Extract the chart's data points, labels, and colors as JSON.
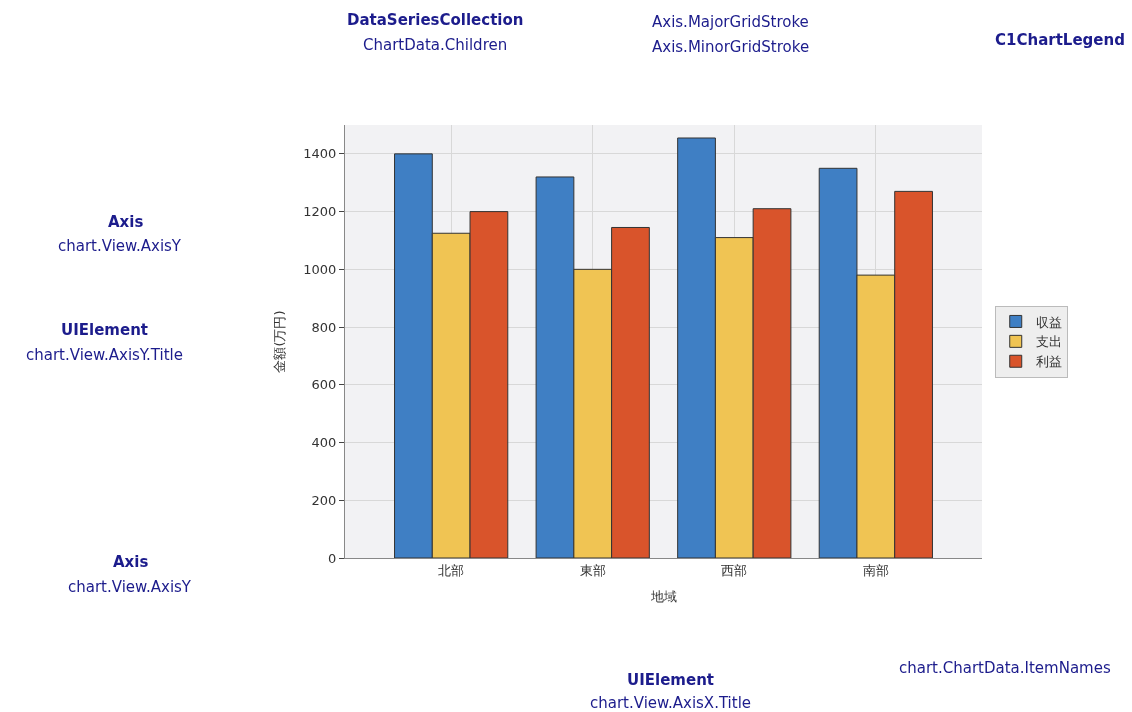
{
  "chart_data": {
    "type": "bar",
    "categories": [
      "北部",
      "東部",
      "西部",
      "南部"
    ],
    "series": [
      {
        "name": "収益",
        "color": "#3f7fc4",
        "values": [
          1400,
          1320,
          1455,
          1350
        ]
      },
      {
        "name": "支出",
        "color": "#f0c453",
        "values": [
          1125,
          1000,
          1110,
          980
        ]
      },
      {
        "name": "利益",
        "color": "#d9542b",
        "values": [
          1200,
          1145,
          1210,
          1270
        ]
      }
    ],
    "xlabel": "地域",
    "ylabel": "金額(万円)",
    "ylim": [
      0,
      1500
    ],
    "yticks": [
      0,
      200,
      400,
      600,
      800,
      1000,
      1200,
      1400
    ],
    "grid": true,
    "legend": "right",
    "annotations": [
      "DataSeriesCollection",
      "ChartData.Children",
      "Axis.MajorGridStroke",
      "Axis.MinorGridStroke",
      "C1ChartLegend",
      "Axis",
      "chart.View.AxisY",
      "UIElement",
      "chart.View.AxisY.Title",
      "Axis",
      "chart.View.AxisY",
      "UIElement",
      "chart.View.AxisX.Title",
      "chart.ChartData.ItemNames"
    ]
  }
}
